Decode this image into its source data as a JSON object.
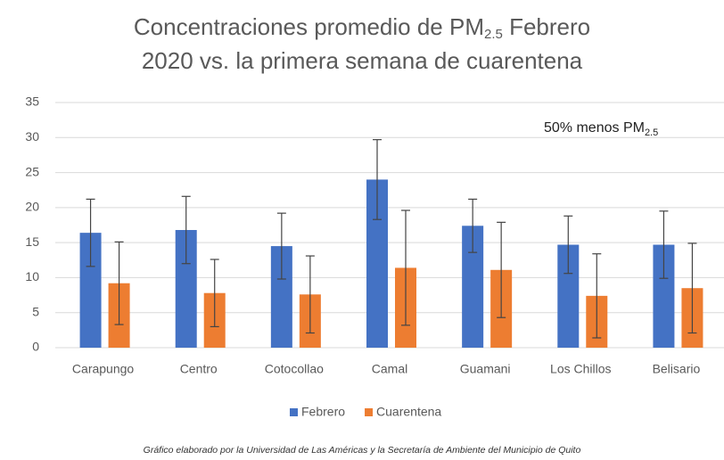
{
  "chart_data": {
    "type": "bar",
    "title": [
      "Concentraciones promedio de PM",
      "2.5",
      " Febrero",
      "2020 vs. la primera semana de cuarentena"
    ],
    "annotation": [
      "50% menos PM",
      "2.5"
    ],
    "footnote": "Gráfico elaborado por la Universidad de Las Américas y la Secretaría de Ambiente del Municipio de Quito",
    "categories": [
      "Carapungo",
      "Centro",
      "Cotocollao",
      "Camal",
      "Guamani",
      "Los Chillos",
      "Belisario"
    ],
    "series": [
      {
        "name": "Febrero",
        "color": "#4472c4",
        "values": [
          16.4,
          16.8,
          14.5,
          24.0,
          17.4,
          14.7,
          14.7
        ],
        "errors": [
          4.8,
          4.8,
          4.7,
          5.7,
          3.8,
          4.1,
          4.8
        ]
      },
      {
        "name": "Cuarentena",
        "color": "#ed7d31",
        "values": [
          9.2,
          7.8,
          7.6,
          11.4,
          11.1,
          7.4,
          8.5
        ],
        "errors": [
          5.9,
          4.8,
          5.5,
          8.2,
          6.8,
          6.0,
          6.4
        ]
      }
    ],
    "ylim": [
      0,
      35
    ],
    "yticks": [
      0,
      5,
      10,
      15,
      20,
      25,
      30,
      35
    ],
    "grid": true,
    "legend": "bottom"
  }
}
